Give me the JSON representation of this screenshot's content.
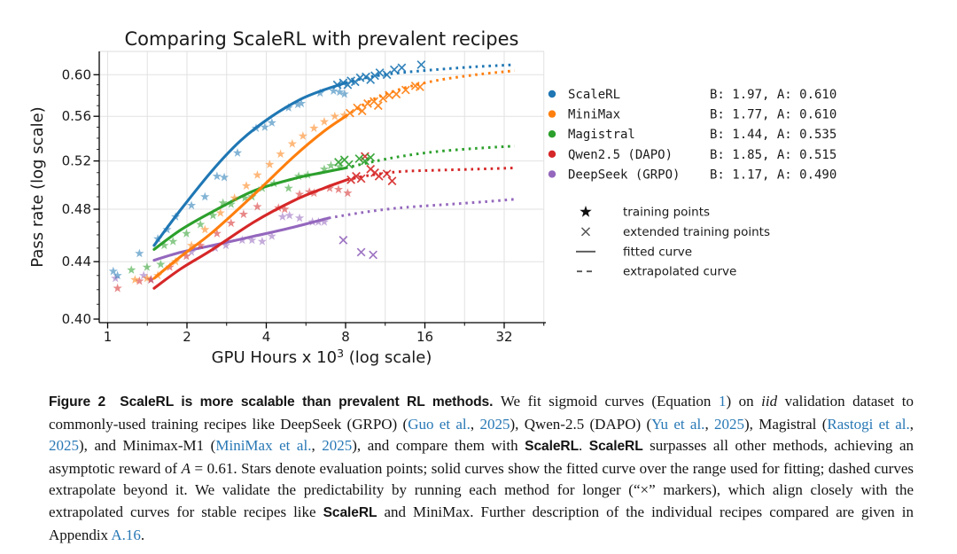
{
  "figure": {
    "title": "Comparing ScaleRL with prevalent recipes",
    "ylabel": "Pass rate (log scale)",
    "xlabel_pre": "GPU Hours x 10",
    "xlabel_sup": "3",
    "xlabel_post": " (log scale)"
  },
  "chart_data": {
    "type": "line",
    "title": "Comparing ScaleRL with prevalent recipes",
    "xlabel": "GPU Hours x 10^3 (log scale)",
    "ylabel": "Pass rate (log scale)",
    "x_scale": "log2",
    "y_scale": "log",
    "x_ticks": [
      1,
      2,
      4,
      8,
      16,
      32
    ],
    "y_ticks": [
      0.4,
      0.44,
      0.48,
      0.52,
      0.56,
      0.6
    ],
    "x_range": [
      0.93,
      46
    ],
    "y_range": [
      0.396,
      0.623
    ],
    "grid": true,
    "legend_position": "right",
    "series": [
      {
        "name": "DeepSeek (GRPO)",
        "params": "B: 1.17, A: 0.490",
        "B": 1.17,
        "A": 0.49,
        "color": "#9467bd",
        "fitted": [
          [
            1.5,
            0.441
          ],
          [
            1.9,
            0.447
          ],
          [
            2.5,
            0.452
          ],
          [
            3.6,
            0.459
          ],
          [
            5.1,
            0.466
          ],
          [
            6.9,
            0.473
          ]
        ],
        "extrapolated": [
          [
            6.9,
            0.473
          ],
          [
            9.0,
            0.477
          ],
          [
            11.5,
            0.48
          ],
          [
            14.5,
            0.482
          ],
          [
            20.0,
            0.484
          ],
          [
            27.0,
            0.486
          ],
          [
            35.0,
            0.488
          ]
        ],
        "stars": [
          [
            1.07,
            0.428
          ],
          [
            1.37,
            0.43
          ],
          [
            1.46,
            0.427
          ],
          [
            2.08,
            0.447
          ],
          [
            2.56,
            0.45
          ],
          [
            2.81,
            0.452
          ],
          [
            3.24,
            0.456
          ],
          [
            3.53,
            0.456
          ],
          [
            3.86,
            0.455
          ],
          [
            4.2,
            0.459
          ],
          [
            4.61,
            0.474
          ],
          [
            4.9,
            0.475
          ],
          [
            5.35,
            0.473
          ],
          [
            5.99,
            0.47
          ],
          [
            6.31,
            0.47
          ],
          [
            6.64,
            0.47
          ]
        ],
        "crosses": [
          [
            7.84,
            0.456
          ],
          [
            9.17,
            0.447
          ],
          [
            10.18,
            0.445
          ]
        ]
      },
      {
        "name": "Qwen2.5 (DAPO)",
        "params": "B: 1.85, A: 0.515",
        "B": 1.85,
        "A": 0.515,
        "color": "#d62728",
        "fitted": [
          [
            1.5,
            0.421
          ],
          [
            1.9,
            0.435
          ],
          [
            2.5,
            0.449
          ],
          [
            3.6,
            0.47
          ],
          [
            5.1,
            0.487
          ],
          [
            6.6,
            0.497
          ],
          [
            8.1,
            0.504
          ]
        ],
        "extrapolated": [
          [
            8.1,
            0.504
          ],
          [
            10.0,
            0.508
          ],
          [
            13.0,
            0.511
          ],
          [
            17.5,
            0.512
          ],
          [
            25.0,
            0.513
          ],
          [
            35.0,
            0.514
          ]
        ],
        "stars": [
          [
            1.09,
            0.421
          ],
          [
            1.32,
            0.426
          ],
          [
            1.46,
            0.427
          ],
          [
            1.72,
            0.436
          ],
          [
            1.99,
            0.444
          ],
          [
            2.25,
            0.452
          ],
          [
            2.6,
            0.461
          ],
          [
            2.94,
            0.469
          ],
          [
            3.28,
            0.476
          ],
          [
            3.7,
            0.482
          ],
          [
            4.45,
            0.481
          ],
          [
            4.7,
            0.48
          ],
          [
            5.35,
            0.492
          ],
          [
            5.83,
            0.494
          ],
          [
            6.07,
            0.493
          ],
          [
            6.96,
            0.497
          ],
          [
            7.52,
            0.496
          ],
          [
            8.15,
            0.493
          ]
        ],
        "crosses": [
          [
            8.39,
            0.504
          ],
          [
            8.78,
            0.507
          ],
          [
            9.17,
            0.505
          ],
          [
            9.48,
            0.524
          ],
          [
            9.95,
            0.513
          ],
          [
            10.33,
            0.51
          ],
          [
            10.71,
            0.507
          ],
          [
            11.48,
            0.509
          ],
          [
            12.01,
            0.503
          ]
        ]
      },
      {
        "name": "Magistral",
        "params": "B: 1.44, A: 0.535",
        "B": 1.44,
        "A": 0.535,
        "color": "#2ca02c",
        "fitted": [
          [
            1.5,
            0.449
          ],
          [
            1.9,
            0.464
          ],
          [
            2.5,
            0.478
          ],
          [
            3.6,
            0.495
          ],
          [
            5.1,
            0.505
          ],
          [
            6.5,
            0.51
          ],
          [
            8.0,
            0.514
          ]
        ],
        "extrapolated": [
          [
            8.0,
            0.514
          ],
          [
            10.0,
            0.519
          ],
          [
            13.0,
            0.524
          ],
          [
            17.5,
            0.528
          ],
          [
            25.0,
            0.531
          ],
          [
            35.0,
            0.533
          ]
        ],
        "stars": [
          [
            1.23,
            0.434
          ],
          [
            1.41,
            0.436
          ],
          [
            1.59,
            0.438
          ],
          [
            1.64,
            0.452
          ],
          [
            1.77,
            0.455
          ],
          [
            1.99,
            0.461
          ],
          [
            2.25,
            0.468
          ],
          [
            2.51,
            0.475
          ],
          [
            2.74,
            0.485
          ],
          [
            2.94,
            0.484
          ],
          [
            3.32,
            0.489
          ],
          [
            3.53,
            0.49
          ],
          [
            3.86,
            0.497
          ],
          [
            4.28,
            0.501
          ],
          [
            4.86,
            0.497
          ],
          [
            5.31,
            0.507
          ],
          [
            5.75,
            0.508
          ],
          [
            6.64,
            0.513
          ],
          [
            7.04,
            0.516
          ],
          [
            7.6,
            0.515
          ]
        ],
        "crosses": [
          [
            7.52,
            0.519
          ],
          [
            7.92,
            0.521
          ],
          [
            8.23,
            0.517
          ],
          [
            9.01,
            0.522
          ],
          [
            9.48,
            0.52
          ],
          [
            9.95,
            0.523
          ]
        ]
      },
      {
        "name": "MiniMax",
        "params": "B: 1.77, A: 0.610",
        "B": 1.77,
        "A": 0.61,
        "color": "#ff7f0e",
        "fitted": [
          [
            1.5,
            0.428
          ],
          [
            1.9,
            0.444
          ],
          [
            2.5,
            0.462
          ],
          [
            3.6,
            0.492
          ],
          [
            5.1,
            0.524
          ],
          [
            6.6,
            0.546
          ],
          [
            8.0,
            0.56
          ]
        ],
        "extrapolated": [
          [
            8.0,
            0.56
          ],
          [
            10.0,
            0.575
          ],
          [
            13.0,
            0.586
          ],
          [
            17.5,
            0.594
          ],
          [
            25.0,
            0.6
          ],
          [
            35.0,
            0.604
          ]
        ],
        "stars": [
          [
            1.27,
            0.427
          ],
          [
            1.41,
            0.428
          ],
          [
            1.55,
            0.43
          ],
          [
            1.81,
            0.44
          ],
          [
            2.08,
            0.452
          ],
          [
            2.34,
            0.464
          ],
          [
            2.68,
            0.477
          ],
          [
            3.03,
            0.489
          ],
          [
            3.36,
            0.499
          ],
          [
            3.7,
            0.508
          ],
          [
            4.12,
            0.517
          ],
          [
            4.53,
            0.526
          ],
          [
            5.02,
            0.535
          ],
          [
            5.51,
            0.542
          ],
          [
            6.07,
            0.549
          ],
          [
            6.64,
            0.555
          ],
          [
            7.28,
            0.56
          ],
          [
            7.92,
            0.561
          ]
        ],
        "crosses": [
          [
            8.31,
            0.563
          ],
          [
            8.86,
            0.568
          ],
          [
            9.25,
            0.565
          ],
          [
            9.71,
            0.572
          ],
          [
            10.25,
            0.574
          ],
          [
            10.64,
            0.57
          ],
          [
            11.1,
            0.577
          ],
          [
            11.71,
            0.58
          ],
          [
            12.47,
            0.581
          ],
          [
            13.52,
            0.585
          ],
          [
            14.72,
            0.589
          ],
          [
            15.32,
            0.588
          ]
        ]
      },
      {
        "name": "ScaleRL",
        "params": "B: 1.97, A: 0.610",
        "B": 1.97,
        "A": 0.61,
        "color": "#1f77b4",
        "fitted": [
          [
            1.5,
            0.452
          ],
          [
            1.9,
            0.48
          ],
          [
            2.5,
            0.512
          ],
          [
            3.2,
            0.538
          ],
          [
            4.2,
            0.56
          ],
          [
            5.4,
            0.576
          ],
          [
            6.6,
            0.585
          ],
          [
            8.0,
            0.592
          ]
        ],
        "extrapolated": [
          [
            8.0,
            0.592
          ],
          [
            10.0,
            0.598
          ],
          [
            13.0,
            0.602
          ],
          [
            17.5,
            0.605
          ],
          [
            25.0,
            0.608
          ],
          [
            35.0,
            0.61
          ]
        ],
        "stars": [
          [
            1.05,
            0.433
          ],
          [
            1.09,
            0.43
          ],
          [
            1.32,
            0.446
          ],
          [
            1.55,
            0.457
          ],
          [
            1.68,
            0.464
          ],
          [
            1.81,
            0.474
          ],
          [
            2.08,
            0.483
          ],
          [
            2.34,
            0.49
          ],
          [
            2.6,
            0.507
          ],
          [
            2.77,
            0.506
          ],
          [
            3.11,
            0.527
          ],
          [
            3.66,
            0.549
          ],
          [
            3.95,
            0.55
          ],
          [
            4.2,
            0.554
          ],
          [
            4.86,
            0.568
          ],
          [
            5.27,
            0.571
          ],
          [
            5.43,
            0.572
          ],
          [
            6.4,
            0.582
          ],
          [
            7.2,
            0.584
          ],
          [
            7.6,
            0.583
          ],
          [
            7.92,
            0.581
          ]
        ],
        "crosses": [
          [
            7.44,
            0.59
          ],
          [
            7.84,
            0.592
          ],
          [
            8.15,
            0.59
          ],
          [
            8.39,
            0.594
          ],
          [
            8.7,
            0.593
          ],
          [
            9.09,
            0.597
          ],
          [
            9.56,
            0.598
          ],
          [
            9.95,
            0.595
          ],
          [
            10.33,
            0.599
          ],
          [
            10.79,
            0.602
          ],
          [
            11.48,
            0.6
          ],
          [
            12.24,
            0.605
          ],
          [
            13.07,
            0.607
          ],
          [
            15.5,
            0.61
          ]
        ]
      }
    ],
    "legend_order": [
      "ScaleRL",
      "MiniMax",
      "Magistral",
      "Qwen2.5 (DAPO)",
      "DeepSeek (GRPO)"
    ],
    "marker_legend": [
      {
        "symbol": "star",
        "label": "training points"
      },
      {
        "symbol": "x",
        "label": "extended training points"
      },
      {
        "symbol": "solid",
        "label": "fitted curve"
      },
      {
        "symbol": "dashed",
        "label": "extrapolated curve"
      }
    ]
  },
  "caption": {
    "segments": [
      {
        "style": "b",
        "text": "Figure 2  ScaleRL is more scalable than prevalent RL methods."
      },
      {
        "style": "t",
        "text": " We fit sigmoid curves (Equation "
      },
      {
        "style": "l",
        "text": "1"
      },
      {
        "style": "t",
        "text": ") on "
      },
      {
        "style": "i",
        "text": "iid"
      },
      {
        "style": "t",
        "text": " validation dataset to commonly-used training recipes like DeepSeek (GRPO) ("
      },
      {
        "style": "l",
        "text": "Guo et al."
      },
      {
        "style": "t",
        "text": ", "
      },
      {
        "style": "l",
        "text": "2025"
      },
      {
        "style": "t",
        "text": "), Qwen-2.5 (DAPO) ("
      },
      {
        "style": "l",
        "text": "Yu et al."
      },
      {
        "style": "t",
        "text": ", "
      },
      {
        "style": "l",
        "text": "2025"
      },
      {
        "style": "t",
        "text": "), Magistral ("
      },
      {
        "style": "l",
        "text": "Rastogi et al."
      },
      {
        "style": "t",
        "text": ", "
      },
      {
        "style": "l",
        "text": "2025"
      },
      {
        "style": "t",
        "text": "), and Minimax-M1 ("
      },
      {
        "style": "l",
        "text": "MiniMax et al."
      },
      {
        "style": "t",
        "text": ", "
      },
      {
        "style": "l",
        "text": "2025"
      },
      {
        "style": "t",
        "text": "), and compare them with "
      },
      {
        "style": "b",
        "text": "ScaleRL"
      },
      {
        "style": "t",
        "text": ". "
      },
      {
        "style": "b",
        "text": "ScaleRL"
      },
      {
        "style": "t",
        "text": " surpasses all other methods, achieving an asymptotic reward of "
      },
      {
        "style": "i",
        "text": "A"
      },
      {
        "style": "t",
        "text": " = 0.61. Stars denote evaluation points; solid curves show the fitted curve over the range used for fitting; dashed curves extrapolate beyond it. We validate the predictability by running each method for longer (“×” markers), which align closely with the extrapolated curves for stable recipes like "
      },
      {
        "style": "b",
        "text": "ScaleRL"
      },
      {
        "style": "t",
        "text": " and MiniMax. Further description of the individual recipes compared are given in Appendix "
      },
      {
        "style": "l",
        "text": "A.16"
      },
      {
        "style": "t",
        "text": "."
      }
    ]
  }
}
